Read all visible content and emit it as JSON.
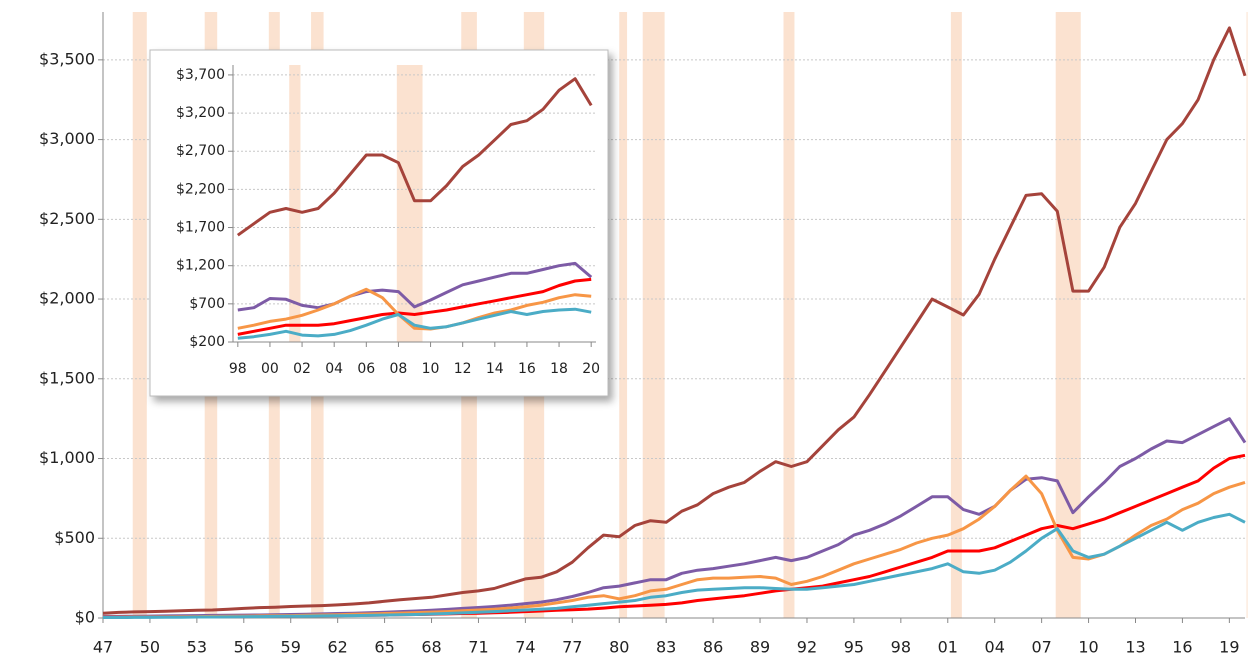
{
  "chart_data": [
    {
      "type": "line",
      "x": [
        1947,
        1948,
        1949,
        1950,
        1951,
        1952,
        1953,
        1954,
        1955,
        1956,
        1957,
        1958,
        1959,
        1960,
        1961,
        1962,
        1963,
        1964,
        1965,
        1966,
        1967,
        1968,
        1969,
        1970,
        1971,
        1972,
        1973,
        1974,
        1975,
        1976,
        1977,
        1978,
        1979,
        1980,
        1981,
        1982,
        1983,
        1984,
        1985,
        1986,
        1987,
        1988,
        1989,
        1990,
        1991,
        1992,
        1993,
        1994,
        1995,
        1996,
        1997,
        1998,
        1999,
        2000,
        2001,
        2002,
        2003,
        2004,
        2005,
        2006,
        2007,
        2008,
        2009,
        2010,
        2011,
        2012,
        2013,
        2014,
        2015,
        2016,
        2017,
        2018,
        2019,
        2020
      ],
      "series": [
        {
          "color": "#a5433b",
          "values": [
            30,
            35,
            38,
            40,
            42,
            45,
            48,
            50,
            55,
            60,
            65,
            68,
            72,
            75,
            78,
            82,
            88,
            95,
            105,
            115,
            122,
            130,
            145,
            160,
            170,
            185,
            215,
            245,
            255,
            290,
            350,
            440,
            520,
            510,
            580,
            610,
            600,
            670,
            710,
            780,
            820,
            850,
            920,
            980,
            950,
            980,
            1080,
            1180,
            1260,
            1400,
            1550,
            1700,
            1850,
            2000,
            1950,
            1900,
            2030,
            2250,
            2450,
            2650,
            2660,
            2550,
            2050,
            2050,
            2200,
            2450,
            2600,
            2800,
            3000,
            3100,
            3250,
            3500,
            3700,
            3400
          ]
        },
        {
          "color": "#7d5ba6",
          "values": [
            10,
            10,
            11,
            12,
            13,
            14,
            15,
            16,
            17,
            18,
            19,
            20,
            22,
            24,
            26,
            28,
            30,
            33,
            36,
            40,
            44,
            48,
            54,
            60,
            66,
            72,
            80,
            90,
            100,
            115,
            135,
            160,
            190,
            200,
            220,
            240,
            240,
            280,
            300,
            310,
            325,
            340,
            360,
            380,
            360,
            380,
            420,
            460,
            520,
            550,
            590,
            640,
            700,
            760,
            760,
            680,
            650,
            700,
            800,
            870,
            880,
            860,
            660,
            760,
            850,
            950,
            1000,
            1060,
            1110,
            1100,
            1150,
            1200,
            1250,
            1100
          ]
        },
        {
          "color": "#ff0000",
          "values": [
            5,
            5,
            6,
            6,
            7,
            7,
            8,
            8,
            9,
            9,
            10,
            11,
            12,
            13,
            14,
            15,
            16,
            17,
            18,
            20,
            22,
            24,
            26,
            28,
            30,
            33,
            36,
            40,
            44,
            48,
            52,
            56,
            62,
            70,
            75,
            80,
            85,
            95,
            110,
            120,
            130,
            140,
            155,
            170,
            180,
            190,
            200,
            220,
            240,
            260,
            290,
            320,
            350,
            380,
            420,
            420,
            420,
            440,
            480,
            520,
            560,
            580,
            560,
            590,
            620,
            660,
            700,
            740,
            780,
            820,
            860,
            940,
            1000,
            1020
          ]
        },
        {
          "color": "#f79646",
          "values": [
            5,
            5,
            6,
            6,
            7,
            8,
            9,
            10,
            11,
            12,
            13,
            14,
            15,
            17,
            19,
            21,
            23,
            25,
            28,
            31,
            34,
            37,
            40,
            45,
            50,
            55,
            62,
            70,
            80,
            95,
            110,
            130,
            140,
            120,
            140,
            170,
            180,
            210,
            240,
            250,
            250,
            255,
            260,
            250,
            210,
            230,
            260,
            300,
            340,
            370,
            400,
            430,
            470,
            500,
            520,
            560,
            620,
            700,
            800,
            890,
            780,
            550,
            380,
            370,
            400,
            450,
            520,
            580,
            620,
            680,
            720,
            780,
            820,
            850
          ]
        },
        {
          "color": "#4bacc6",
          "values": [
            3,
            3,
            4,
            4,
            5,
            5,
            6,
            6,
            7,
            8,
            9,
            10,
            11,
            12,
            13,
            14,
            15,
            16,
            18,
            20,
            22,
            25,
            28,
            32,
            36,
            40,
            45,
            50,
            55,
            60,
            70,
            80,
            90,
            100,
            110,
            130,
            140,
            160,
            175,
            180,
            185,
            190,
            190,
            185,
            180,
            180,
            190,
            200,
            210,
            230,
            250,
            270,
            290,
            310,
            340,
            290,
            280,
            300,
            350,
            420,
            500,
            560,
            420,
            380,
            400,
            450,
            500,
            550,
            600,
            550,
            600,
            630,
            650,
            600
          ]
        }
      ],
      "shaded_ranges": [
        [
          1948.9,
          1949.8
        ],
        [
          1953.5,
          1954.3
        ],
        [
          1957.6,
          1958.3
        ],
        [
          1960.3,
          1961.1
        ],
        [
          1969.9,
          1970.9
        ],
        [
          1973.9,
          1975.2
        ],
        [
          1980.0,
          1980.5
        ],
        [
          1981.5,
          1982.9
        ],
        [
          1990.5,
          1991.2
        ],
        [
          2001.2,
          2001.9
        ],
        [
          2007.9,
          2009.5
        ],
        [
          2020.1,
          2020.3
        ]
      ],
      "shade_color": "#fbe2d0",
      "xlim": [
        1947,
        2020
      ],
      "xticks": [
        {
          "value": 1947,
          "label": "47"
        },
        {
          "value": 1950,
          "label": "50"
        },
        {
          "value": 1953,
          "label": "53"
        },
        {
          "value": 1956,
          "label": "56"
        },
        {
          "value": 1959,
          "label": "59"
        },
        {
          "value": 1962,
          "label": "62"
        },
        {
          "value": 1965,
          "label": "65"
        },
        {
          "value": 1968,
          "label": "68"
        },
        {
          "value": 1971,
          "label": "71"
        },
        {
          "value": 1974,
          "label": "74"
        },
        {
          "value": 1977,
          "label": "77"
        },
        {
          "value": 1980,
          "label": "80"
        },
        {
          "value": 1983,
          "label": "83"
        },
        {
          "value": 1986,
          "label": "86"
        },
        {
          "value": 1989,
          "label": "89"
        },
        {
          "value": 1992,
          "label": "92"
        },
        {
          "value": 1995,
          "label": "95"
        },
        {
          "value": 1998,
          "label": "98"
        },
        {
          "value": 2001,
          "label": "01"
        },
        {
          "value": 2004,
          "label": "04"
        },
        {
          "value": 2007,
          "label": "07"
        },
        {
          "value": 2010,
          "label": "10"
        },
        {
          "value": 2013,
          "label": "13"
        },
        {
          "value": 2016,
          "label": "16"
        },
        {
          "value": 2019,
          "label": "19"
        }
      ],
      "ylim": [
        0,
        3800
      ],
      "yticks": [
        {
          "value": 0,
          "label": "$0"
        },
        {
          "value": 500,
          "label": "$500"
        },
        {
          "value": 1000,
          "label": "$1,000"
        },
        {
          "value": 1500,
          "label": "$1,500"
        },
        {
          "value": 2000,
          "label": "$2,000"
        },
        {
          "value": 2500,
          "label": "$2,500"
        },
        {
          "value": 3000,
          "label": "$3,000"
        },
        {
          "value": 3500,
          "label": "$3,500"
        }
      ],
      "grid": true
    },
    {
      "type": "line",
      "x": [
        1998,
        1999,
        2000,
        2001,
        2002,
        2003,
        2004,
        2005,
        2006,
        2007,
        2008,
        2009,
        2010,
        2011,
        2012,
        2013,
        2014,
        2015,
        2016,
        2017,
        2018,
        2019,
        2020
      ],
      "series": [
        {
          "color": "#a5433b",
          "values": [
            1600,
            1750,
            1900,
            1950,
            1900,
            1950,
            2150,
            2400,
            2650,
            2650,
            2550,
            2050,
            2050,
            2250,
            2500,
            2650,
            2850,
            3050,
            3100,
            3250,
            3500,
            3650,
            3300
          ]
        },
        {
          "color": "#7d5ba6",
          "values": [
            620,
            650,
            770,
            760,
            680,
            650,
            700,
            800,
            860,
            880,
            860,
            660,
            750,
            850,
            950,
            1000,
            1050,
            1100,
            1100,
            1150,
            1200,
            1230,
            1050
          ]
        },
        {
          "color": "#ff0000",
          "values": [
            300,
            340,
            380,
            420,
            420,
            420,
            440,
            480,
            520,
            560,
            580,
            560,
            590,
            620,
            660,
            700,
            740,
            780,
            820,
            860,
            940,
            1000,
            1020
          ]
        },
        {
          "color": "#f79646",
          "values": [
            380,
            420,
            470,
            500,
            550,
            620,
            700,
            800,
            890,
            780,
            560,
            380,
            370,
            400,
            450,
            520,
            580,
            620,
            680,
            720,
            780,
            820,
            800
          ]
        },
        {
          "color": "#4bacc6",
          "values": [
            250,
            270,
            300,
            340,
            290,
            280,
            300,
            350,
            420,
            500,
            560,
            420,
            380,
            400,
            450,
            500,
            550,
            600,
            560,
            600,
            620,
            630,
            590
          ]
        }
      ],
      "shaded_ranges": [
        [
          2001.2,
          2001.9
        ],
        [
          2007.9,
          2009.5
        ]
      ],
      "shade_color": "#fbe2d0",
      "xlim": [
        1997.7,
        2020.3
      ],
      "xticks": [
        {
          "value": 1998,
          "label": "98"
        },
        {
          "value": 2000,
          "label": "00"
        },
        {
          "value": 2002,
          "label": "02"
        },
        {
          "value": 2004,
          "label": "04"
        },
        {
          "value": 2006,
          "label": "06"
        },
        {
          "value": 2008,
          "label": "08"
        },
        {
          "value": 2010,
          "label": "10"
        },
        {
          "value": 2012,
          "label": "12"
        },
        {
          "value": 2014,
          "label": "14"
        },
        {
          "value": 2016,
          "label": "16"
        },
        {
          "value": 2018,
          "label": "18"
        },
        {
          "value": 2020,
          "label": "20"
        }
      ],
      "ylim": [
        200,
        3830
      ],
      "yticks": [
        {
          "value": 200,
          "label": "$200"
        },
        {
          "value": 700,
          "label": "$700"
        },
        {
          "value": 1200,
          "label": "$1,200"
        },
        {
          "value": 1700,
          "label": "$1,700"
        },
        {
          "value": 2200,
          "label": "$2,200"
        },
        {
          "value": 2700,
          "label": "$2,700"
        },
        {
          "value": 3200,
          "label": "$3,200"
        },
        {
          "value": 3700,
          "label": "$3,700"
        }
      ],
      "grid": true
    }
  ]
}
